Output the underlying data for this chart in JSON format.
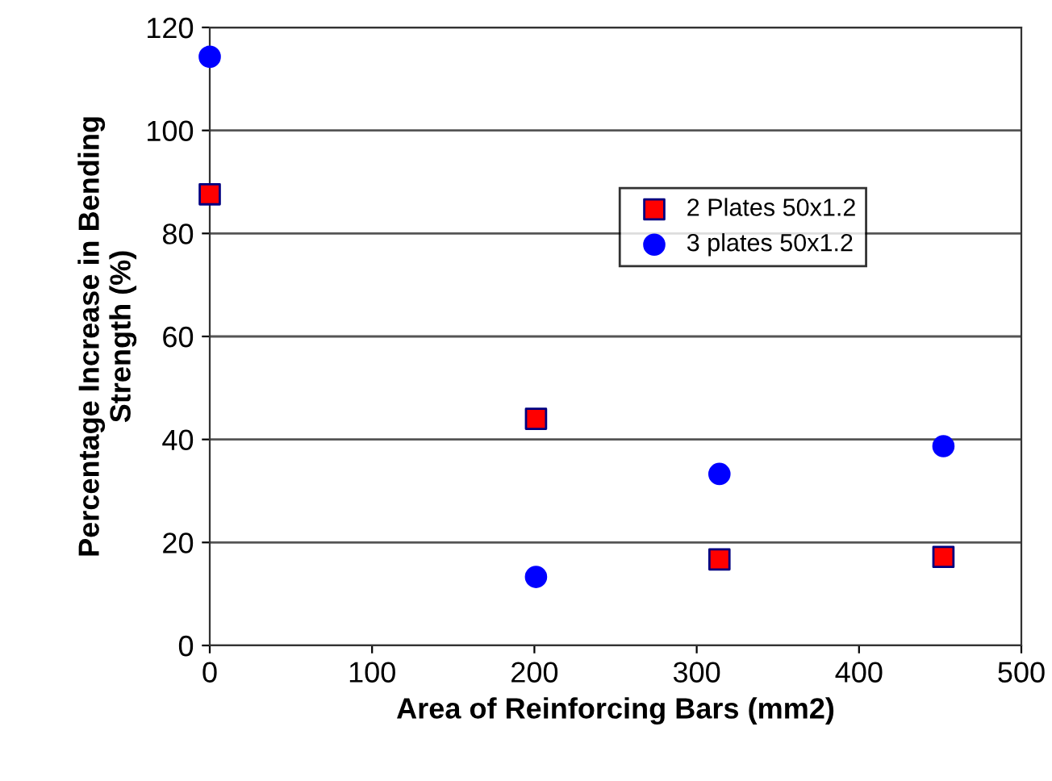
{
  "chart_data": {
    "type": "scatter",
    "xlabel": "Area of Reinforcing Bars (mm2)",
    "ylabel": "Percentage Increase in Bending\nStrength (%)",
    "xlim": [
      0,
      500
    ],
    "xticks": [
      0,
      100,
      200,
      300,
      400,
      500
    ],
    "ylim": [
      0,
      120
    ],
    "yticks": [
      0,
      20,
      40,
      60,
      80,
      100,
      120
    ],
    "grid": "y",
    "legend": "top right",
    "series": [
      {
        "name": "2 Plates 50x1.2",
        "color": "#ff0000",
        "marker": "square",
        "x": [
          0,
          201,
          314,
          452
        ],
        "values": [
          87.6,
          44,
          16.7,
          17.2
        ]
      },
      {
        "name": "3 plates 50x1.2",
        "color": "#0000ff",
        "marker": "circle",
        "x": [
          0,
          201,
          314,
          452
        ],
        "values": [
          114.3,
          13.3,
          33.3,
          38.7
        ]
      }
    ]
  }
}
